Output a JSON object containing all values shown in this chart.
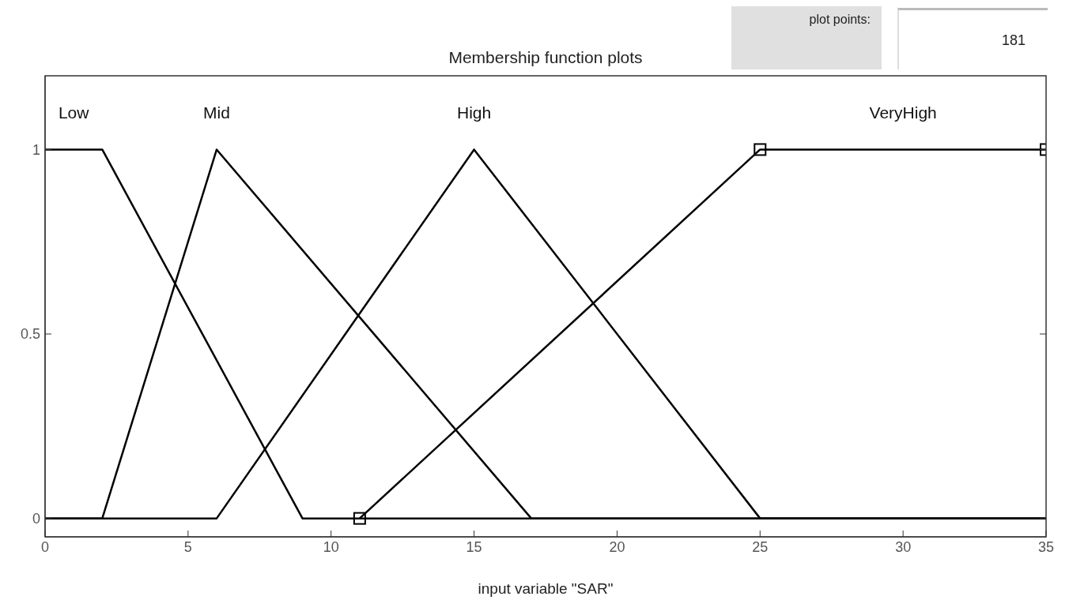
{
  "chart_data": {
    "type": "line",
    "title": "Membership function plots",
    "xlabel": "input variable \"SAR\"",
    "xlim": [
      0,
      35
    ],
    "xticks": [
      0,
      5,
      10,
      15,
      20,
      25,
      30,
      35
    ],
    "ylim": [
      -0.05,
      1.2
    ],
    "yticks": [
      0,
      0.5,
      1
    ],
    "grid": false,
    "annotations": [
      "plot points:",
      "181"
    ],
    "series": [
      {
        "name": "Low",
        "color": "#000000",
        "x": [
          0,
          2,
          9,
          35
        ],
        "values": [
          1,
          1,
          0,
          0
        ]
      },
      {
        "name": "Mid",
        "color": "#000000",
        "x": [
          0,
          2,
          6,
          17,
          35
        ],
        "values": [
          0,
          0,
          1,
          0,
          0
        ]
      },
      {
        "name": "High",
        "color": "#000000",
        "x": [
          0,
          6,
          15,
          25,
          35
        ],
        "values": [
          0,
          0,
          1,
          0,
          0
        ]
      },
      {
        "name": "VeryHigh",
        "color": "#000000",
        "x": [
          11,
          25,
          35
        ],
        "values": [
          0,
          1,
          1
        ],
        "marker": "square"
      }
    ]
  }
}
